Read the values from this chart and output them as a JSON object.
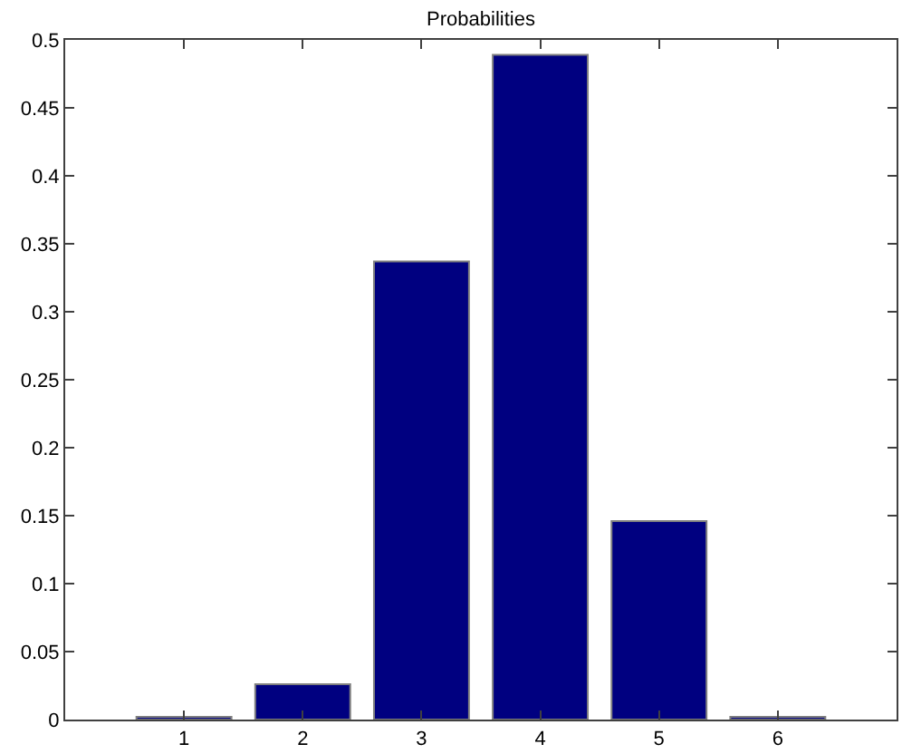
{
  "chart_data": {
    "type": "bar",
    "title": "Probabilities",
    "x": [
      1,
      2,
      3,
      4,
      5,
      6
    ],
    "values": [
      0.002,
      0.026,
      0.337,
      0.489,
      0.146,
      0.002
    ],
    "color": "#000080",
    "xlim": [
      0,
      7
    ],
    "xticks": [
      1,
      2,
      3,
      4,
      5,
      6
    ],
    "ylim": [
      0,
      0.5
    ],
    "yticks": [
      0,
      0.05,
      0.1,
      0.15,
      0.2,
      0.25,
      0.3,
      0.35,
      0.4,
      0.45,
      0.5
    ],
    "grid": false
  }
}
